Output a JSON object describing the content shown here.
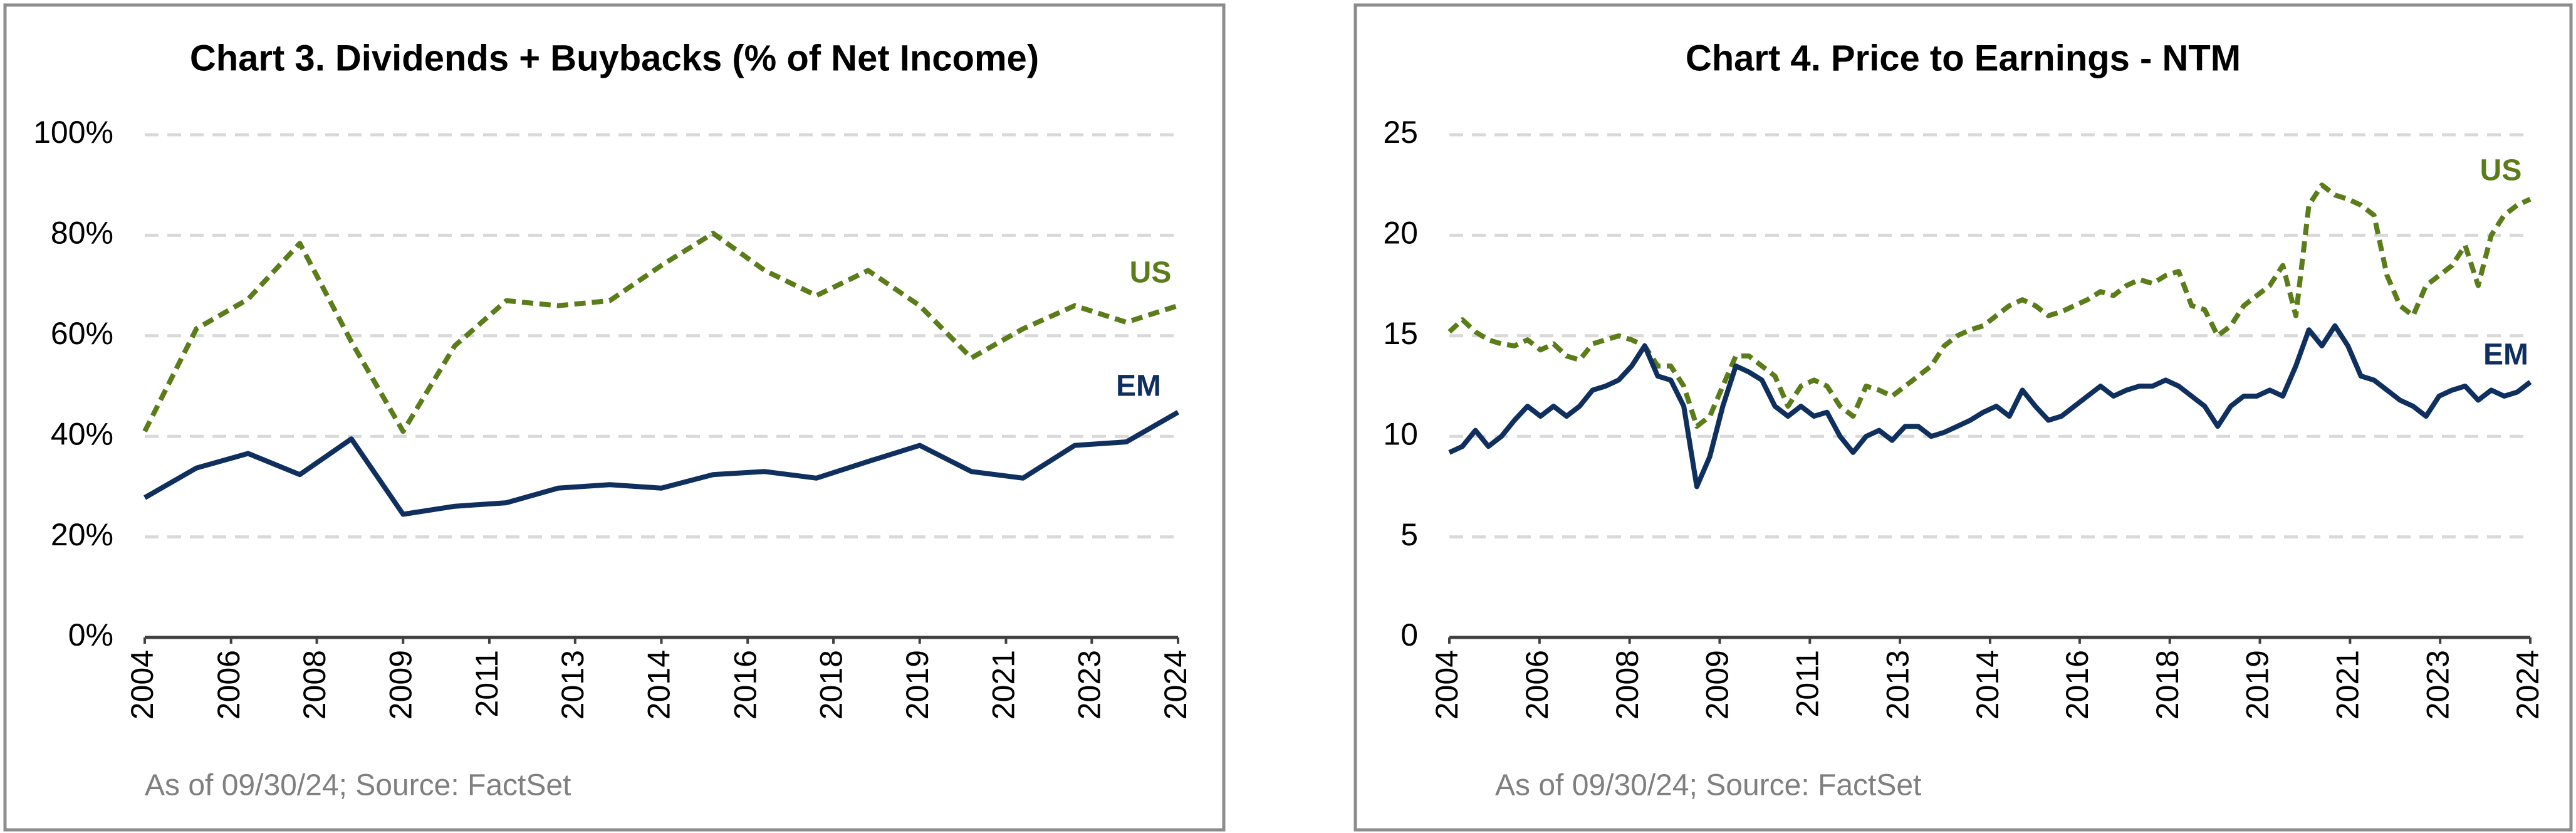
{
  "chart_data": [
    {
      "type": "line",
      "title": "Chart 3. Dividends + Buybacks (% of Net Income)",
      "footnote": "As of 09/30/24; Source: FactSet",
      "x": [
        2004,
        2005,
        2006,
        2007,
        2008,
        2009,
        2010,
        2011,
        2012,
        2013,
        2014,
        2015,
        2016,
        2017,
        2018,
        2019,
        2020,
        2021,
        2022,
        2023,
        2024
      ],
      "series": [
        {
          "name": "US",
          "color": "#5a7d1a",
          "dashed": true,
          "values": [
            41,
            61.4,
            67.3,
            78.4,
            58.8,
            41,
            58,
            67,
            66,
            67,
            74,
            80.4,
            73,
            68,
            73,
            66,
            55.6,
            61.4,
            66,
            62.7,
            66
          ]
        },
        {
          "name": "EM",
          "color": "#0f2f5f",
          "dashed": false,
          "values": [
            27.8,
            33.7,
            36.6,
            32.4,
            39.5,
            24.5,
            26.1,
            26.8,
            29.7,
            30.4,
            29.7,
            32.4,
            33,
            31.7,
            35,
            38.2,
            33,
            31.7,
            38.2,
            38.9,
            44.8
          ]
        }
      ],
      "xlim": [
        2004,
        2024
      ],
      "xticks": [
        {
          "value": 2004,
          "label": "2004"
        },
        {
          "value": 2005.67,
          "label": "2006"
        },
        {
          "value": 2007.33,
          "label": "2008"
        },
        {
          "value": 2009,
          "label": "2009"
        },
        {
          "value": 2010.67,
          "label": "2011"
        },
        {
          "value": 2012.33,
          "label": "2013"
        },
        {
          "value": 2014,
          "label": "2014"
        },
        {
          "value": 2015.67,
          "label": "2016"
        },
        {
          "value": 2017.33,
          "label": "2018"
        },
        {
          "value": 2019,
          "label": "2019"
        },
        {
          "value": 2020.67,
          "label": "2021"
        },
        {
          "value": 2022.33,
          "label": "2023"
        },
        {
          "value": 2024,
          "label": "2024"
        }
      ],
      "ylim": [
        0,
        100
      ],
      "yticks": [
        {
          "value": 0,
          "label": "0%"
        },
        {
          "value": 20,
          "label": "20%"
        },
        {
          "value": 40,
          "label": "40%"
        },
        {
          "value": 60,
          "label": "60%"
        },
        {
          "value": 80,
          "label": "80%"
        },
        {
          "value": 100,
          "label": "100%"
        }
      ],
      "grid": true
    },
    {
      "type": "line",
      "title": "Chart 4. Price to Earnings - NTM",
      "footnote": "As of 09/30/24; Source: FactSet",
      "x": [
        2004,
        2004.25,
        2004.5,
        2004.75,
        2005,
        2005.25,
        2005.5,
        2005.75,
        2006,
        2006.25,
        2006.5,
        2006.75,
        2007,
        2007.25,
        2007.5,
        2007.75,
        2008,
        2008.25,
        2008.5,
        2008.75,
        2009,
        2009.25,
        2009.5,
        2009.75,
        2010,
        2010.25,
        2010.5,
        2010.75,
        2011,
        2011.25,
        2011.5,
        2011.75,
        2012,
        2012.25,
        2012.5,
        2012.75,
        2013,
        2013.25,
        2013.5,
        2013.75,
        2014,
        2014.25,
        2014.5,
        2014.75,
        2015,
        2015.25,
        2015.5,
        2015.75,
        2016,
        2016.25,
        2016.5,
        2016.75,
        2017,
        2017.25,
        2017.5,
        2017.75,
        2018,
        2018.25,
        2018.5,
        2018.75,
        2019,
        2019.25,
        2019.5,
        2019.75,
        2020,
        2020.25,
        2020.5,
        2020.75,
        2021,
        2021.25,
        2021.5,
        2021.75,
        2022,
        2022.25,
        2022.5,
        2022.75,
        2023,
        2023.25,
        2023.5,
        2023.75,
        2024,
        2024.25,
        2024.5,
        2024.75
      ],
      "series": [
        {
          "name": "US",
          "color": "#5a7d1a",
          "dashed": true,
          "values": [
            15.2,
            15.8,
            15.2,
            14.8,
            14.6,
            14.5,
            14.8,
            14.3,
            14.6,
            14.0,
            13.8,
            14.6,
            14.8,
            15.0,
            14.8,
            14.5,
            13.5,
            13.5,
            12.5,
            10.5,
            11.0,
            12.5,
            14.0,
            14.0,
            13.5,
            13.0,
            11.5,
            12.5,
            12.8,
            12.5,
            11.5,
            11.0,
            12.5,
            12.3,
            12.0,
            12.5,
            13.0,
            13.5,
            14.5,
            15.0,
            15.3,
            15.5,
            16.0,
            16.5,
            16.8,
            16.5,
            16.0,
            16.2,
            16.5,
            16.8,
            17.2,
            17.0,
            17.5,
            17.8,
            17.6,
            18.0,
            18.2,
            16.5,
            16.3,
            15.0,
            15.5,
            16.5,
            17.0,
            17.5,
            18.5,
            16.0,
            21.5,
            22.5,
            22.0,
            21.8,
            21.5,
            21.0,
            18.0,
            16.5,
            16.0,
            17.5,
            18.0,
            18.5,
            19.5,
            17.5,
            20.0,
            21.0,
            21.5,
            21.8
          ]
        },
        {
          "name": "EM",
          "color": "#0f2f5f",
          "dashed": false,
          "values": [
            9.2,
            9.5,
            10.3,
            9.5,
            10.0,
            10.8,
            11.5,
            11.0,
            11.5,
            11.0,
            11.5,
            12.3,
            12.5,
            12.8,
            13.5,
            14.5,
            13.0,
            12.8,
            11.5,
            7.5,
            9.0,
            11.5,
            13.5,
            13.2,
            12.8,
            11.5,
            11.0,
            11.5,
            11.0,
            11.2,
            10.0,
            9.2,
            10.0,
            10.3,
            9.8,
            10.5,
            10.5,
            10.0,
            10.2,
            10.5,
            10.8,
            11.2,
            11.5,
            11.0,
            12.3,
            11.5,
            10.8,
            11.0,
            11.5,
            12.0,
            12.5,
            12.0,
            12.3,
            12.5,
            12.5,
            12.8,
            12.5,
            12.0,
            11.5,
            10.5,
            11.5,
            12.0,
            12.0,
            12.3,
            12.0,
            13.5,
            15.3,
            14.5,
            15.5,
            14.5,
            13.0,
            12.8,
            12.3,
            11.8,
            11.5,
            11.0,
            12.0,
            12.3,
            12.5,
            11.8,
            12.3,
            12.0,
            12.2,
            12.7
          ]
        }
      ],
      "xlim": [
        2004,
        2024.75
      ],
      "xticks": [
        {
          "value": 2004,
          "label": "2004"
        },
        {
          "value": 2005.73,
          "label": "2006"
        },
        {
          "value": 2007.46,
          "label": "2008"
        },
        {
          "value": 2009.19,
          "label": "2009"
        },
        {
          "value": 2010.92,
          "label": "2011"
        },
        {
          "value": 2012.65,
          "label": "2013"
        },
        {
          "value": 2014.38,
          "label": "2014"
        },
        {
          "value": 2016.1,
          "label": "2016"
        },
        {
          "value": 2017.83,
          "label": "2018"
        },
        {
          "value": 2019.56,
          "label": "2019"
        },
        {
          "value": 2021.29,
          "label": "2021"
        },
        {
          "value": 2023.02,
          "label": "2023"
        },
        {
          "value": 2024.75,
          "label": "2024"
        }
      ],
      "ylim": [
        0,
        25
      ],
      "yticks": [
        0,
        5,
        10,
        15,
        20,
        25
      ],
      "grid": true
    }
  ]
}
